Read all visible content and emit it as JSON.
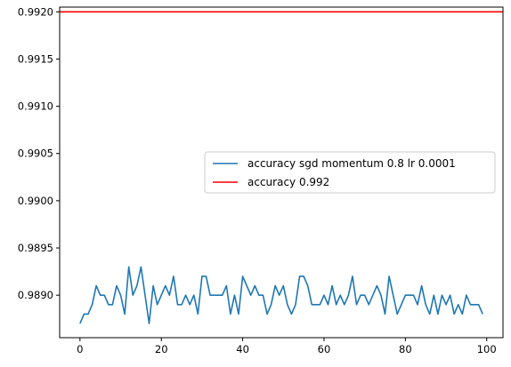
{
  "chart_data": {
    "type": "line",
    "title": "",
    "xlabel": "",
    "ylabel": "",
    "xlim": [
      -5,
      104
    ],
    "ylim": [
      0.98855,
      0.99205
    ],
    "x_ticks": [
      0,
      20,
      40,
      60,
      80,
      100
    ],
    "x_tick_labels": [
      "0",
      "20",
      "40",
      "60",
      "80",
      "100"
    ],
    "y_ticks": [
      0.989,
      0.9895,
      0.99,
      0.9905,
      0.991,
      0.9915,
      0.992
    ],
    "y_tick_labels": [
      "0.9890",
      "0.9895",
      "0.9900",
      "0.9905",
      "0.9910",
      "0.9915",
      "0.9920"
    ],
    "grid": false,
    "legend_position": "center-right",
    "series": [
      {
        "name": "accuracy sgd momentum 0.8 lr 0.0001",
        "color": "#1f77b4",
        "x": [
          0,
          1,
          2,
          3,
          4,
          5,
          6,
          7,
          8,
          9,
          10,
          11,
          12,
          13,
          14,
          15,
          16,
          17,
          18,
          19,
          20,
          21,
          22,
          23,
          24,
          25,
          26,
          27,
          28,
          29,
          30,
          31,
          32,
          33,
          34,
          35,
          36,
          37,
          38,
          39,
          40,
          41,
          42,
          43,
          44,
          45,
          46,
          47,
          48,
          49,
          50,
          51,
          52,
          53,
          54,
          55,
          56,
          57,
          58,
          59,
          60,
          61,
          62,
          63,
          64,
          65,
          66,
          67,
          68,
          69,
          70,
          71,
          72,
          73,
          74,
          75,
          76,
          77,
          78,
          79,
          80,
          81,
          82,
          83,
          84,
          85,
          86,
          87,
          88,
          89,
          90,
          91,
          92,
          93,
          94,
          95,
          96,
          97,
          98,
          99
        ],
        "y": [
          0.9887,
          0.9888,
          0.9888,
          0.9889,
          0.9891,
          0.989,
          0.989,
          0.9889,
          0.9889,
          0.9891,
          0.989,
          0.9888,
          0.9893,
          0.989,
          0.9891,
          0.9893,
          0.989,
          0.9887,
          0.9891,
          0.9889,
          0.989,
          0.9891,
          0.989,
          0.9892,
          0.9889,
          0.9889,
          0.989,
          0.9889,
          0.989,
          0.9888,
          0.9892,
          0.9892,
          0.989,
          0.989,
          0.989,
          0.989,
          0.9891,
          0.9888,
          0.989,
          0.9888,
          0.9892,
          0.9891,
          0.989,
          0.9891,
          0.989,
          0.989,
          0.9888,
          0.9889,
          0.9891,
          0.989,
          0.9891,
          0.9889,
          0.9888,
          0.9889,
          0.9892,
          0.9892,
          0.9891,
          0.9889,
          0.9889,
          0.9889,
          0.989,
          0.9889,
          0.9891,
          0.9889,
          0.989,
          0.9889,
          0.989,
          0.9892,
          0.9889,
          0.989,
          0.989,
          0.9889,
          0.989,
          0.9891,
          0.989,
          0.9888,
          0.9892,
          0.989,
          0.9888,
          0.9889,
          0.989,
          0.989,
          0.989,
          0.9889,
          0.9891,
          0.9889,
          0.9888,
          0.989,
          0.9888,
          0.989,
          0.9889,
          0.989,
          0.9888,
          0.9889,
          0.9888,
          0.989,
          0.9889,
          0.9889,
          0.9889,
          0.9888
        ]
      },
      {
        "name": "accuracy 0.992",
        "color": "#ff0000",
        "type": "hline",
        "y": 0.992
      }
    ]
  }
}
